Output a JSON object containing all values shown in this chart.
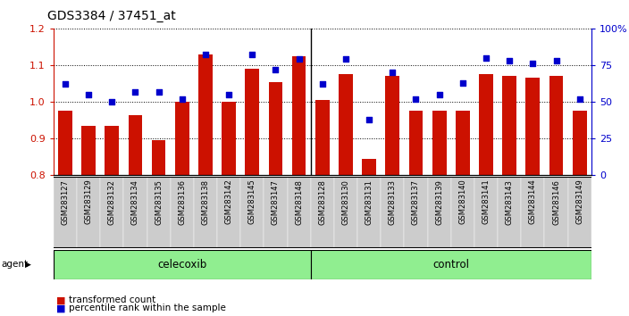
{
  "title": "GDS3384 / 37451_at",
  "samples": [
    "GSM283127",
    "GSM283129",
    "GSM283132",
    "GSM283134",
    "GSM283135",
    "GSM283136",
    "GSM283138",
    "GSM283142",
    "GSM283145",
    "GSM283147",
    "GSM283148",
    "GSM283128",
    "GSM283130",
    "GSM283131",
    "GSM283133",
    "GSM283137",
    "GSM283139",
    "GSM283140",
    "GSM283141",
    "GSM283143",
    "GSM283144",
    "GSM283146",
    "GSM283149"
  ],
  "transformed_count": [
    0.975,
    0.935,
    0.935,
    0.965,
    0.895,
    1.0,
    1.13,
    1.0,
    1.09,
    1.055,
    1.125,
    1.005,
    1.075,
    0.845,
    1.07,
    0.975,
    0.975,
    0.975,
    1.075,
    1.07,
    1.065,
    1.07,
    0.975
  ],
  "percentile_rank": [
    62,
    55,
    50,
    57,
    57,
    52,
    82,
    55,
    82,
    72,
    79,
    62,
    79,
    38,
    70,
    52,
    55,
    63,
    80,
    78,
    76,
    78,
    52
  ],
  "celecoxib_count": 11,
  "control_count": 12,
  "group_celecoxib_label": "celecoxib",
  "group_control_label": "control",
  "agent_label": "agent",
  "bar_color": "#cc1100",
  "dot_color": "#0000cc",
  "ylim_left": [
    0.8,
    1.2
  ],
  "ylim_right": [
    0,
    100
  ],
  "yticks_left": [
    0.8,
    0.9,
    1.0,
    1.1,
    1.2
  ],
  "yticks_right": [
    0,
    25,
    50,
    75,
    100
  ],
  "legend_bar": "transformed count",
  "legend_dot": "percentile rank within the sample",
  "bg_celecoxib": "#90ee90",
  "bg_control": "#90ee90",
  "xticklabel_bg": "#cccccc",
  "title_fontsize": 10
}
